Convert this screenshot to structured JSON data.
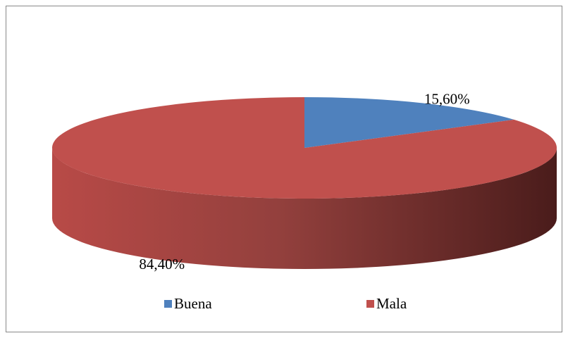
{
  "chart_data": {
    "type": "pie",
    "categories": [
      "Buena",
      "Mala"
    ],
    "values": [
      15.6,
      84.4
    ],
    "value_labels": [
      "15,60%",
      "84,40%"
    ],
    "colors": [
      "#4f81bd",
      "#c0504d"
    ],
    "legend": "bottom"
  }
}
